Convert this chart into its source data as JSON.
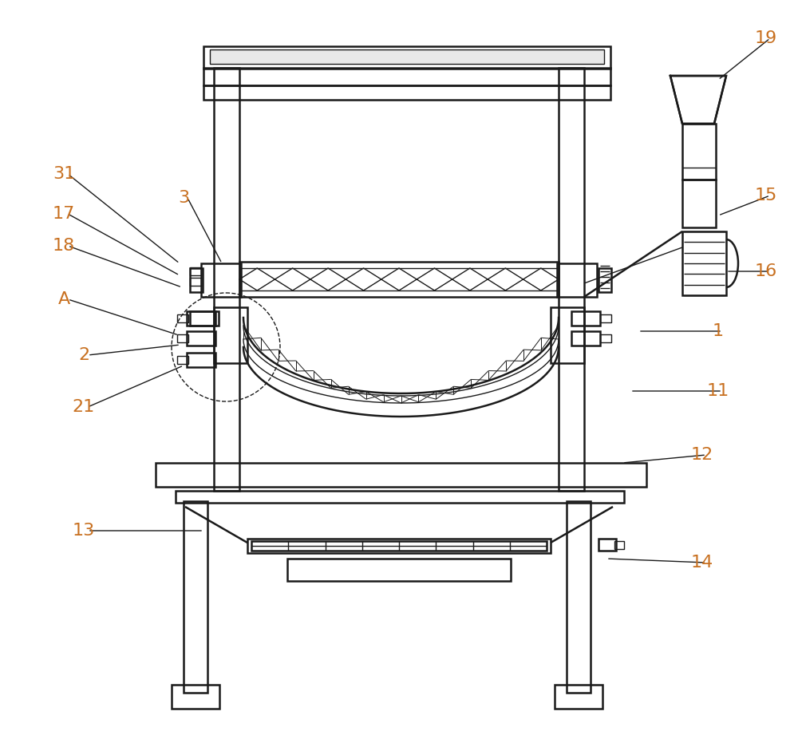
{
  "bg_color": "#ffffff",
  "line_color": "#1a1a1a",
  "label_color": "#c87020",
  "lw": 1.8,
  "tlw": 1.0,
  "fig_width": 10.0,
  "fig_height": 9.16
}
